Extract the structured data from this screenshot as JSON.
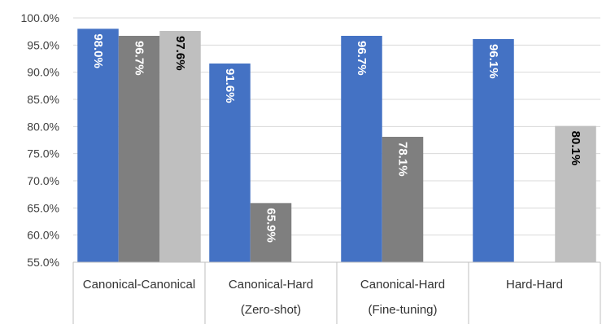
{
  "chart_data": {
    "type": "bar",
    "categories": [
      [
        "Canonical-Canonical"
      ],
      [
        "Canonical-Hard",
        "(Zero-shot)"
      ],
      [
        "Canonical-Hard",
        "(Fine-tuning)"
      ],
      [
        "Hard-Hard"
      ]
    ],
    "series": [
      {
        "color": "#4472c4",
        "label_color": "#ffffff",
        "values": [
          98.0,
          91.6,
          96.7,
          96.1
        ]
      },
      {
        "color": "#7f7f7f",
        "label_color": "#ffffff",
        "values": [
          96.7,
          65.9,
          78.1,
          null
        ]
      },
      {
        "color": "#bfbfbf",
        "label_color": "#000000",
        "values": [
          97.6,
          null,
          null,
          80.1
        ]
      }
    ],
    "value_labels": [
      [
        "98.0%",
        "96.7%",
        "97.6%"
      ],
      [
        "91.6%",
        "65.9%",
        ""
      ],
      [
        "96.7%",
        "78.1%",
        ""
      ],
      [
        "96.1%",
        "",
        "80.1%"
      ]
    ],
    "y_ticks": [
      "55.0%",
      "60.0%",
      "65.0%",
      "70.0%",
      "75.0%",
      "80.0%",
      "85.0%",
      "90.0%",
      "95.0%",
      "100.0%"
    ],
    "ylim": [
      55,
      100
    ],
    "grid": true,
    "legend": "none",
    "title": "",
    "xlabel": "",
    "ylabel": ""
  }
}
